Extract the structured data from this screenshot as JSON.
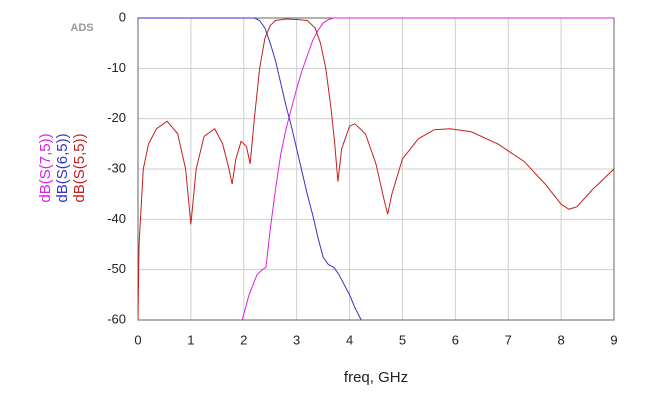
{
  "chart_data": {
    "type": "line",
    "tag": "ADS",
    "xlabel": "freq, GHz",
    "xlim": [
      0,
      9
    ],
    "xticks": [
      0,
      1,
      2,
      3,
      4,
      5,
      6,
      7,
      8,
      9
    ],
    "ylim": [
      -60,
      0
    ],
    "yticks": [
      -60,
      -50,
      -40,
      -30,
      -20,
      -10,
      0
    ],
    "grid": true,
    "series": [
      {
        "name": "dB(S(7,5))",
        "color": "#e020e0",
        "x": [
          1.97,
          2.1,
          2.25,
          2.35,
          2.42,
          2.5,
          2.6,
          2.7,
          2.8,
          2.9,
          3.0,
          3.1,
          3.2,
          3.3,
          3.4,
          3.5,
          3.6,
          3.7,
          9.0
        ],
        "values": [
          -60,
          -55,
          -51,
          -50,
          -49.5,
          -42,
          -34,
          -27,
          -22,
          -18,
          -14,
          -10.5,
          -7.5,
          -4.5,
          -2.5,
          -1,
          -0.3,
          0,
          0
        ]
      },
      {
        "name": "dB(S(6,5))",
        "color": "#3434c0",
        "x": [
          0,
          2.2,
          2.3,
          2.4,
          2.5,
          2.6,
          2.7,
          2.8,
          2.9,
          3.0,
          3.1,
          3.2,
          3.3,
          3.4,
          3.5,
          3.6,
          3.7,
          3.8,
          3.9,
          4.0,
          4.1,
          4.22
        ],
        "values": [
          0,
          0,
          -0.5,
          -2,
          -5,
          -8.5,
          -13,
          -17.5,
          -21.5,
          -26,
          -30.5,
          -35,
          -39,
          -43.5,
          -47.5,
          -49,
          -49.5,
          -51,
          -53,
          -55,
          -57.5,
          -60
        ]
      },
      {
        "name": "dB(S(5,5))",
        "color": "#c42020",
        "x": [
          0,
          0.02,
          0.1,
          0.2,
          0.35,
          0.55,
          0.75,
          0.9,
          1.0,
          1.1,
          1.25,
          1.45,
          1.6,
          1.72,
          1.78,
          1.85,
          1.95,
          2.05,
          2.12,
          2.2,
          2.3,
          2.4,
          2.5,
          2.6,
          2.8,
          3.0,
          3.2,
          3.35,
          3.45,
          3.55,
          3.65,
          3.72,
          3.78,
          3.85,
          4.0,
          4.1,
          4.3,
          4.5,
          4.65,
          4.72,
          4.8,
          5.0,
          5.3,
          5.6,
          5.9,
          6.3,
          6.8,
          7.3,
          7.7,
          8.0,
          8.15,
          8.3,
          8.6,
          9.0
        ],
        "values": [
          -60,
          -45,
          -30,
          -25,
          -22,
          -20.5,
          -23,
          -30,
          -41,
          -30,
          -23.5,
          -22,
          -25,
          -30,
          -33,
          -28,
          -24.5,
          -25.5,
          -29,
          -20,
          -10,
          -4,
          -1.5,
          -0.5,
          -0.2,
          -0.3,
          -0.5,
          -2,
          -5,
          -10,
          -18,
          -25,
          -32.5,
          -26,
          -21.5,
          -21,
          -23,
          -29,
          -36,
          -39,
          -35,
          -28,
          -24,
          -22.2,
          -22,
          -22.6,
          -25,
          -28.5,
          -33,
          -37,
          -38,
          -37.5,
          -34,
          -30
        ]
      }
    ]
  }
}
